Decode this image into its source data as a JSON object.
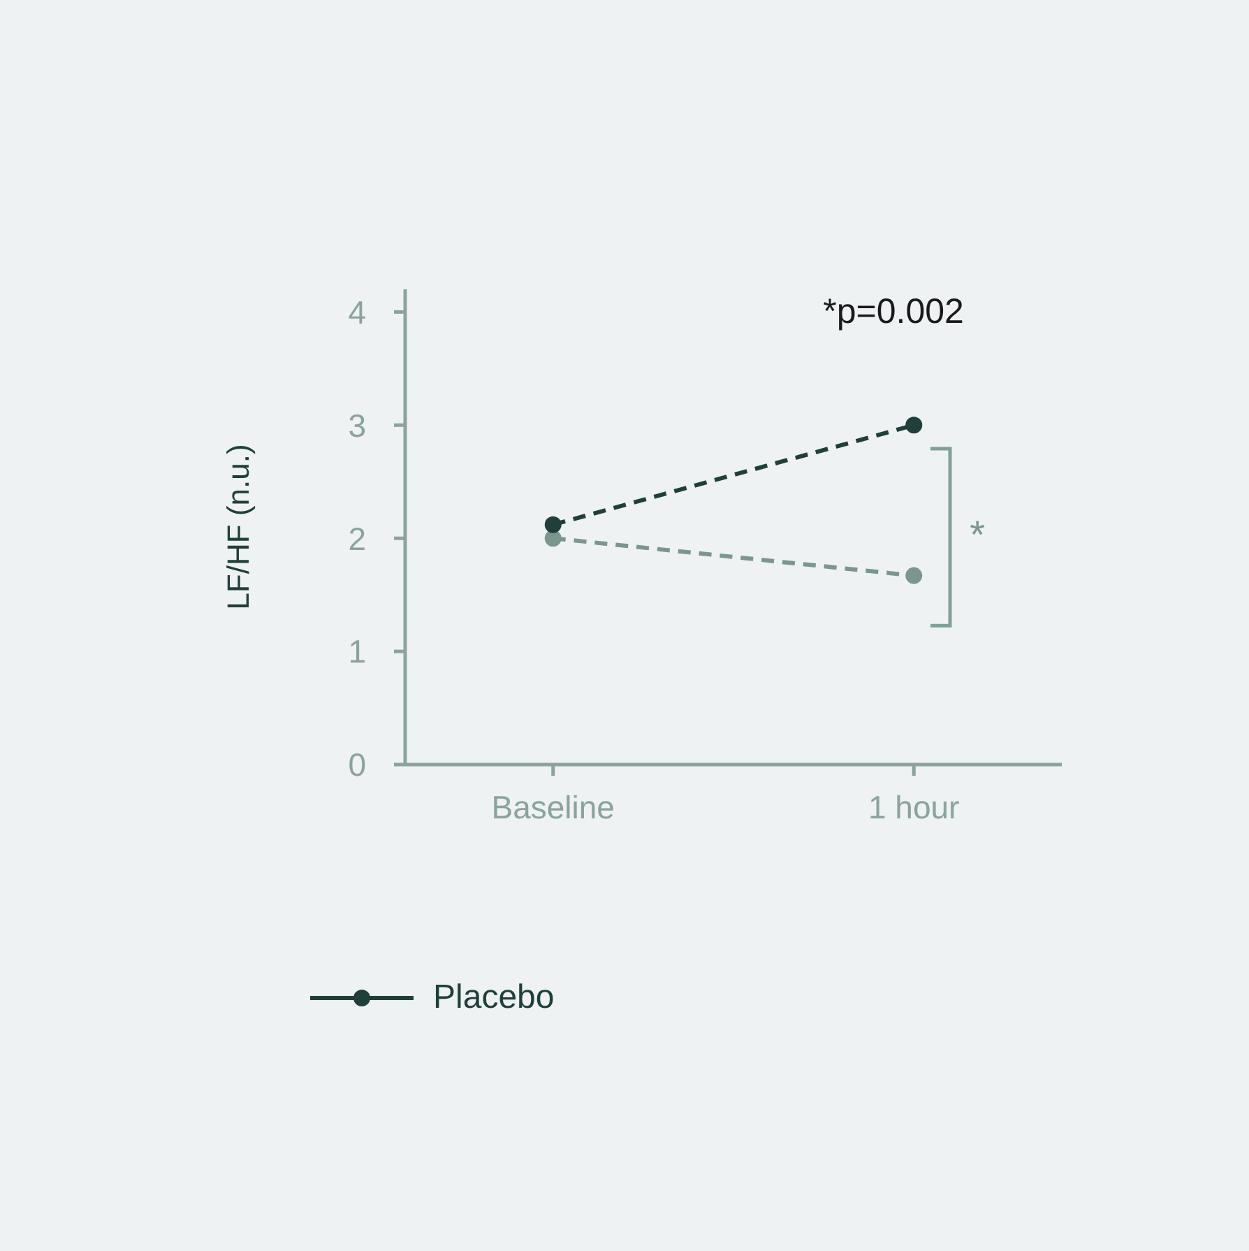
{
  "chart_data": {
    "type": "line",
    "ylabel": "LF/HF (n.u.)",
    "categories": [
      "Baseline",
      "1 hour"
    ],
    "series": [
      {
        "color": "#7a968f",
        "values": [
          2.0,
          1.67
        ]
      },
      {
        "name": "Placebo",
        "color": "#1f3f3b",
        "values": [
          2.12,
          3.0
        ]
      }
    ],
    "ylim": [
      0,
      4.2
    ],
    "yticks": [
      0,
      1,
      2,
      3,
      4
    ],
    "legend": "bottom",
    "marker": "circle",
    "line_style": "dashed",
    "annotations": [
      "*p=0.002",
      "*"
    ]
  }
}
